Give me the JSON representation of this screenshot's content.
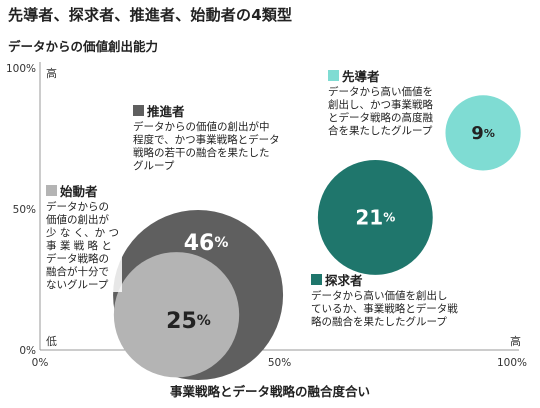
{
  "title": "先導者、探求者、推進者、始動者の4類型",
  "chart_data": {
    "type": "bubble",
    "title": "先導者、探求者、推進者、始動者の4類型",
    "xlabel": "事業戦略とデータ戦略の融合度合い",
    "ylabel": "データからの価値創出能力",
    "xlim": [
      0,
      100
    ],
    "ylim": [
      0,
      100
    ],
    "x_ticks": [
      "0%",
      "50%",
      "100%"
    ],
    "y_ticks": [
      "0%",
      "50%",
      "100%"
    ],
    "y_low_label": "低",
    "y_high_label": "高",
    "x_high_label": "高",
    "grid": false,
    "series": [
      {
        "key": "suishin",
        "name": "推進者",
        "value": 46,
        "value_label": "46%",
        "color": "#5f5f5f",
        "x": 33,
        "y": 19.5,
        "desc": [
          "データからの価値の創出が中",
          "程度で、かつ事業戦略とデータ",
          "戦略の若干の融合を果たした",
          "グループ"
        ]
      },
      {
        "key": "shido",
        "name": "始動者",
        "value": 25,
        "value_label": "25%",
        "color": "#b4b4b4",
        "x": 28.5,
        "y": 12.5,
        "desc": [
          "データからの",
          "価値の創出が",
          "少 な く、か つ",
          "事 業 戦 略 と",
          "データ戦略の",
          "融合が十分で",
          "ないグループ"
        ]
      },
      {
        "key": "tankyu",
        "name": "探求者",
        "value": 21,
        "value_label": "21%",
        "color": "#1f766c",
        "x": 70,
        "y": 47,
        "desc": [
          "データから高い価値を創出し",
          "ているか、事業戦略とデータ戦",
          "略の融合を果たしたグループ"
        ]
      },
      {
        "key": "sendo",
        "name": "先導者",
        "value": 9,
        "value_label": "9%",
        "color": "#7fdcd3",
        "x": 92.5,
        "y": 77,
        "desc": [
          "データから高い価値を",
          "創出し、かつ事業戦略",
          "とデータ戦略の高度融",
          "合を果たしたグループ"
        ]
      }
    ]
  }
}
